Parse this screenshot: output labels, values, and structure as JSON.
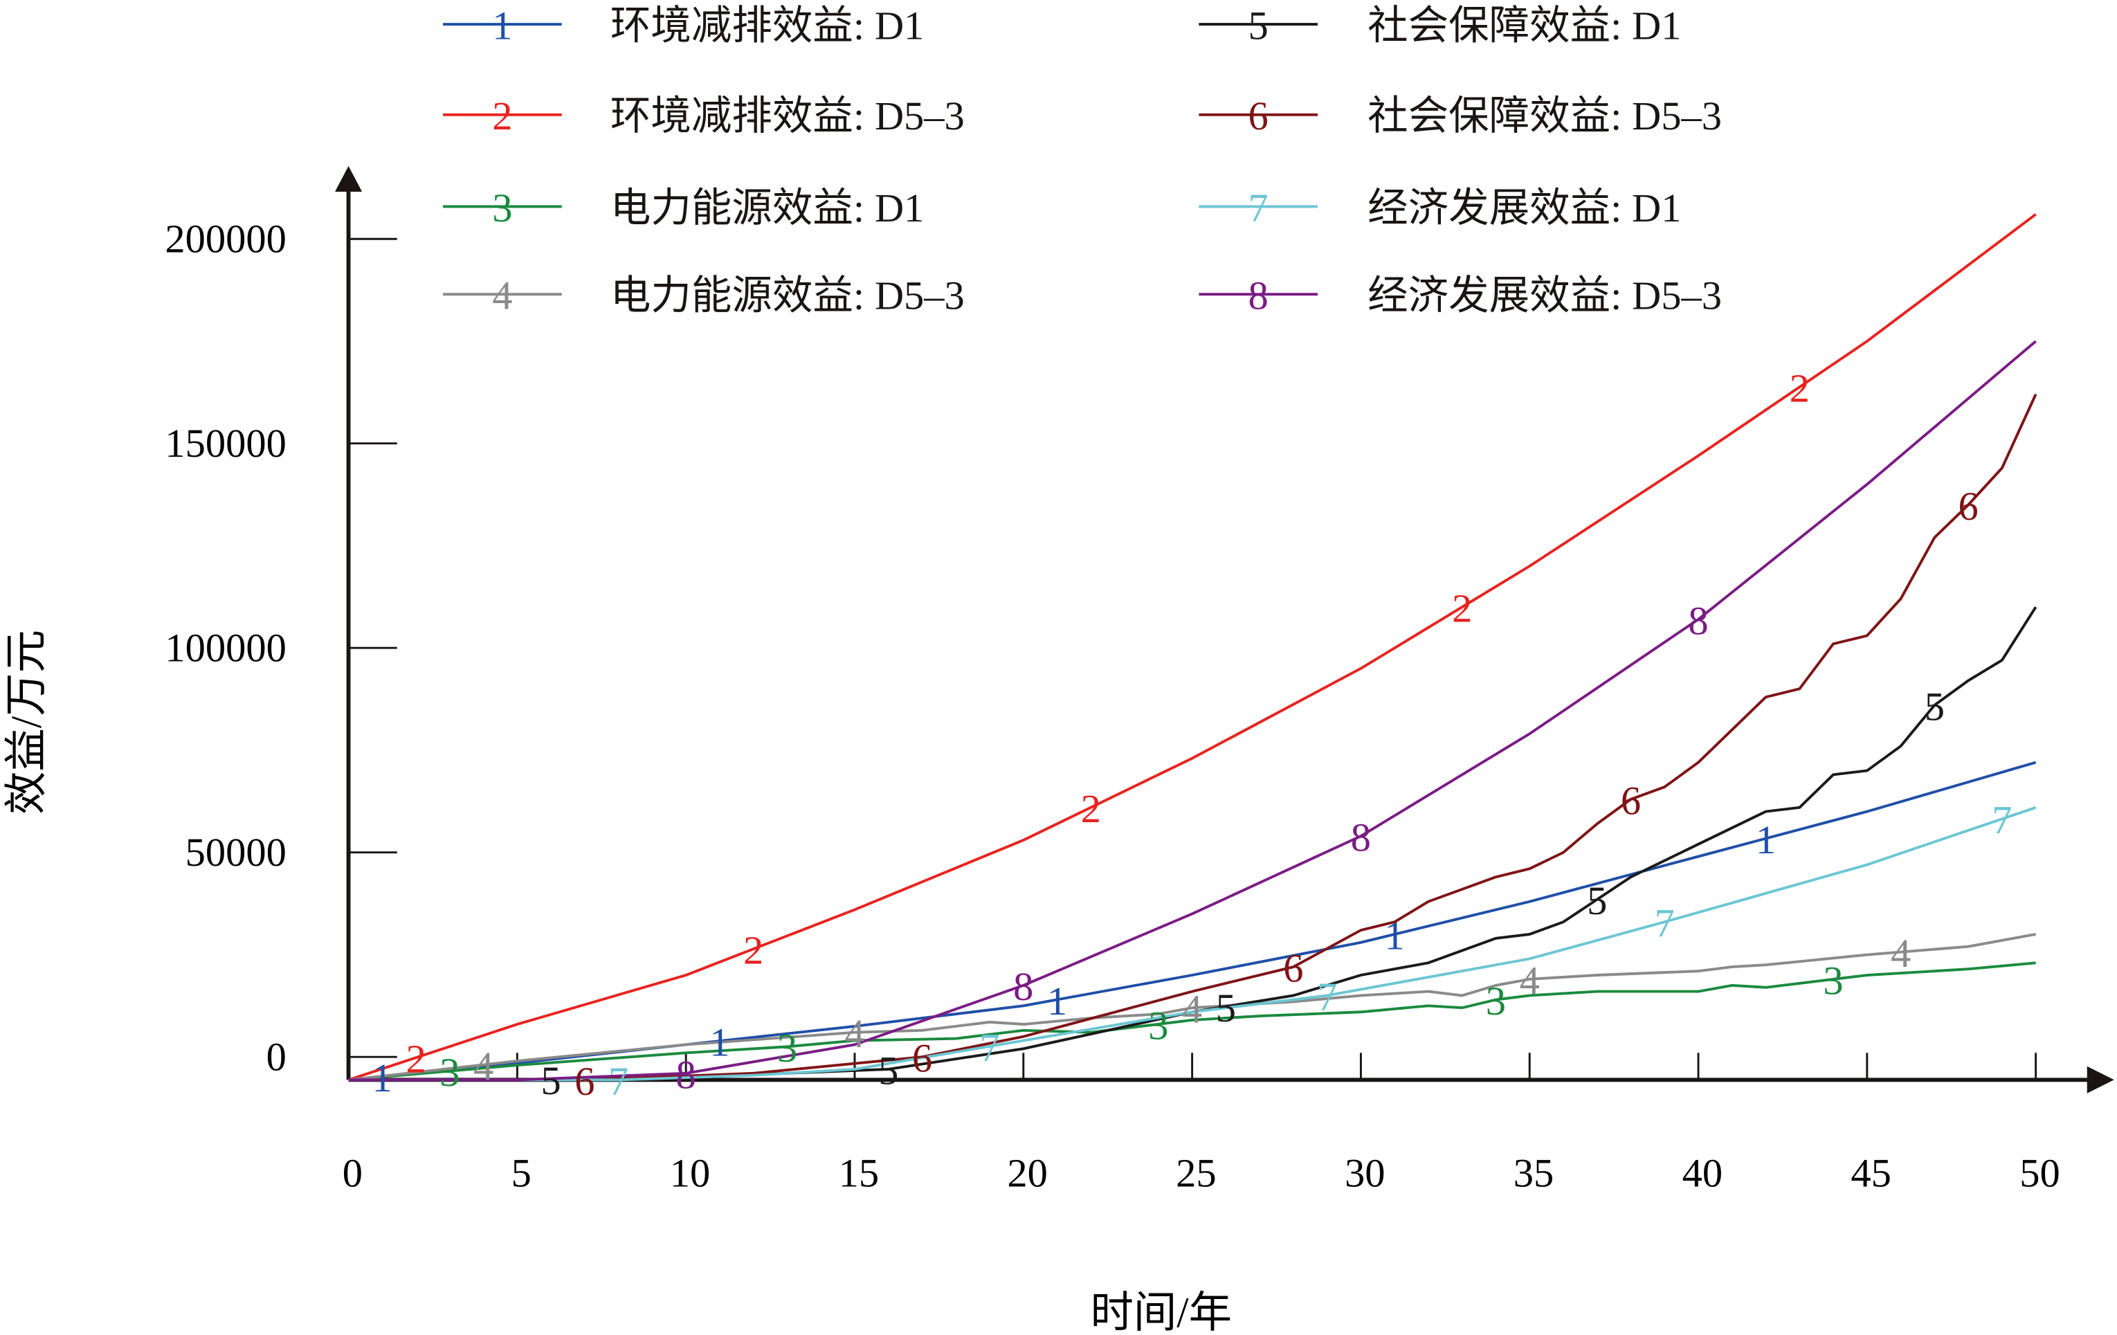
{
  "chart_data": {
    "type": "line",
    "title": "",
    "xlabel": "时间/年",
    "ylabel": "效益/万元",
    "xlim": [
      0,
      50
    ],
    "ylim": [
      -5600,
      205000
    ],
    "xticks": [
      0,
      5,
      10,
      15,
      20,
      25,
      30,
      35,
      40,
      45,
      50
    ],
    "xtick_labels": [
      "0",
      "5",
      "10",
      "15",
      "20",
      "25",
      "30",
      "35",
      "40",
      "45",
      "50"
    ],
    "yticks": [
      0,
      50000,
      100000,
      150000,
      200000
    ],
    "ytick_labels": [
      "0",
      "50000",
      "100000",
      "150000",
      "200000"
    ],
    "grid": false,
    "legend_placement": "top",
    "series": [
      {
        "id": "1",
        "name": "环境减排效益: D1",
        "color": "#1f4fa8",
        "x": [
          0,
          5,
          10,
          15,
          20,
          25,
          30,
          35,
          40,
          45,
          50
        ],
        "y": [
          -5600,
          -1500,
          3000,
          7500,
          12500,
          20000,
          28000,
          38000,
          49000,
          60000,
          72000
        ],
        "label_x": [
          1,
          11,
          21,
          31,
          42
        ]
      },
      {
        "id": "2",
        "name": "环境减排效益: D5–3",
        "color": "#e8231f",
        "x": [
          0,
          5,
          10,
          15,
          20,
          25,
          30,
          35,
          40,
          45,
          50
        ],
        "y": [
          -5600,
          8000,
          20000,
          36000,
          53000,
          73000,
          95000,
          120000,
          147000,
          175000,
          206000
        ],
        "label_x": [
          2,
          12,
          22,
          33,
          43
        ]
      },
      {
        "id": "3",
        "name": "电力能源效益: D1",
        "color": "#1a8a3e",
        "x": [
          0,
          5,
          10,
          13,
          15,
          18,
          20,
          22,
          25,
          27,
          30,
          32,
          33,
          34,
          35,
          37,
          40,
          41,
          42,
          45,
          48,
          50
        ],
        "y": [
          -5600,
          -2000,
          1000,
          2500,
          4000,
          4500,
          6500,
          6000,
          9000,
          10000,
          11000,
          12500,
          12000,
          14000,
          15000,
          16000,
          16000,
          17500,
          17000,
          20000,
          21500,
          23000
        ],
        "label_x": [
          3,
          13,
          24,
          34,
          44
        ]
      },
      {
        "id": "4",
        "name": "电力能源效益: D5–3",
        "color": "#8a8a8a",
        "x": [
          0,
          5,
          10,
          15,
          17,
          19,
          20,
          22,
          24,
          25,
          28,
          30,
          32,
          33,
          34,
          35,
          37,
          40,
          41,
          42,
          45,
          48,
          50
        ],
        "y": [
          -5600,
          -1000,
          3000,
          6000,
          6500,
          8500,
          8000,
          9500,
          10500,
          12000,
          13500,
          15000,
          16000,
          15000,
          17500,
          19000,
          20000,
          21000,
          22000,
          22500,
          25000,
          27000,
          30000
        ],
        "label_x": [
          4,
          15,
          25,
          35,
          46
        ]
      },
      {
        "id": "5",
        "name": "社会保障效益: D1",
        "color": "#1a1a1a",
        "x": [
          0,
          5,
          10,
          16,
          20,
          25,
          28,
          30,
          32,
          34,
          35,
          36,
          38,
          40,
          42,
          43,
          44,
          45,
          46,
          47,
          48,
          49,
          50
        ],
        "y": [
          -5600,
          -5600,
          -5000,
          -3000,
          2000,
          11000,
          15000,
          20000,
          23000,
          29000,
          30000,
          33000,
          44000,
          52000,
          60000,
          61000,
          69000,
          70000,
          76000,
          86000,
          92000,
          97000,
          110000
        ],
        "label_x": [
          6,
          16,
          26,
          37,
          47
        ]
      },
      {
        "id": "6",
        "name": "社会保障效益: D5–3",
        "color": "#7f1416",
        "x": [
          0,
          7,
          12,
          17,
          20,
          25,
          28,
          30,
          31,
          32,
          34,
          35,
          36,
          37,
          38,
          39,
          40,
          41,
          42,
          43,
          44,
          45,
          46,
          47,
          48,
          49,
          50
        ],
        "y": [
          -5600,
          -5600,
          -4000,
          0,
          5000,
          16000,
          22000,
          31000,
          33000,
          38000,
          44000,
          46000,
          50000,
          57000,
          63000,
          66000,
          72000,
          80000,
          88000,
          90000,
          101000,
          103000,
          112000,
          127000,
          135000,
          144000,
          162000
        ],
        "label_x": [
          7,
          17,
          28,
          38,
          48
        ]
      },
      {
        "id": "7",
        "name": "经济发展效益: D1",
        "color": "#6cc6d4",
        "x": [
          0,
          8,
          12,
          15,
          20,
          25,
          29,
          35,
          39,
          45,
          50
        ],
        "y": [
          -5600,
          -5600,
          -4500,
          -3000,
          4000,
          11000,
          15000,
          24000,
          33000,
          47000,
          61000
        ],
        "label_x": [
          8,
          19,
          29,
          39,
          49
        ]
      },
      {
        "id": "8",
        "name": "经济发展效益: D5–3",
        "color": "#7b1c85",
        "x": [
          0,
          5,
          10,
          15,
          20,
          25,
          30,
          35,
          40,
          45,
          50
        ],
        "y": [
          -5600,
          -5600,
          -4000,
          3000,
          17500,
          35000,
          54000,
          79000,
          107000,
          140000,
          175000
        ],
        "label_x": [
          10,
          20,
          30,
          40
        ]
      }
    ]
  }
}
